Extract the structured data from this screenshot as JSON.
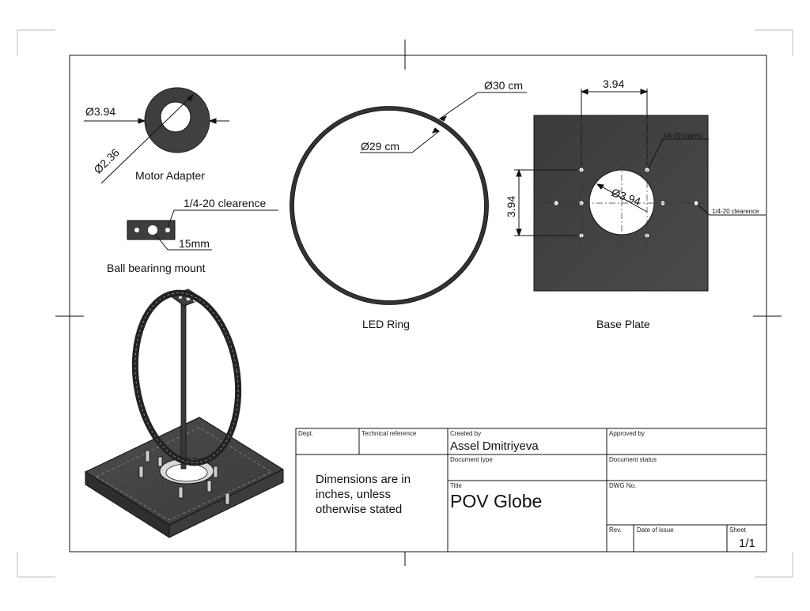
{
  "views": {
    "motor_adapter": {
      "title": "Motor Adapter",
      "outer_dim": "Ø3.94",
      "inner_dim": "Ø2.36"
    },
    "bearing_mount": {
      "title": "Ball bearinng mount",
      "hole_note": "1/4-20 clearence",
      "center_dim": "15mm"
    },
    "led_ring": {
      "title": "LED Ring",
      "outer_dim": "Ø30 cm",
      "inner_dim": "Ø29 cm"
    },
    "base_plate": {
      "title": "Base Plate",
      "horizontal_dim": "3.94",
      "vertical_dim": "3.94",
      "hole_dim": "Ø3.94",
      "tapped_note": "1/4-20 tapped",
      "clearance_note": "1/4-20 clearence"
    }
  },
  "title_block": {
    "dept_label": "Dept.",
    "tech_ref_label": "Technical reference",
    "created_by_label": "Created by",
    "created_by": "Assel Dmitriyeva",
    "approved_by_label": "Approved by",
    "note": "Dimensions are in inches, unless otherwise stated",
    "doc_type_label": "Document type",
    "doc_status_label": "Document status",
    "title_label": "Title",
    "title": "POV Globe",
    "dwg_label": "DWG No.",
    "rev_label": "Rev.",
    "date_label": "Date of issue",
    "sheet_label": "Sheet",
    "sheet": "1/1"
  },
  "colors": {
    "part_dark": "#3a3a3a",
    "part_mid": "#474747",
    "line": "#111111"
  }
}
